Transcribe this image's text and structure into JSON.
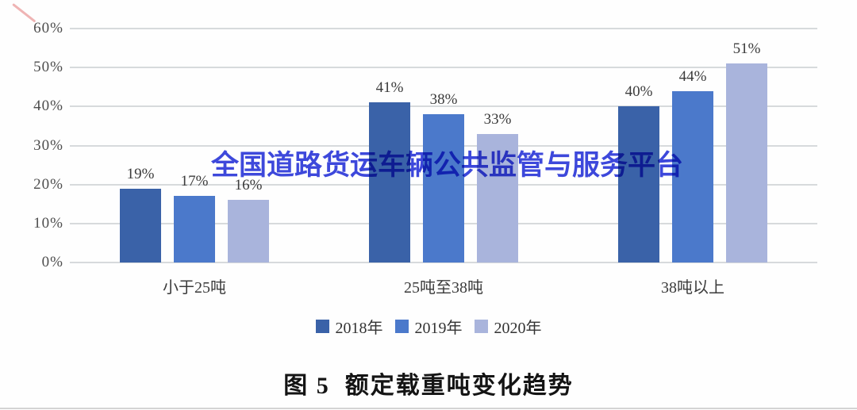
{
  "page": {
    "caption": "图 5  额定载重吨变化趋势",
    "watermark": "全国道路货运车辆公共监管与服务平台"
  },
  "chart_data": {
    "type": "bar",
    "title": "图 5 额定载重吨变化趋势",
    "categories": [
      "小于25吨",
      "25吨至38吨",
      "38吨以上"
    ],
    "series": [
      {
        "name": "2018年",
        "color": "#3a62a8",
        "values": [
          19,
          41,
          40
        ]
      },
      {
        "name": "2019年",
        "color": "#4b79cb",
        "values": [
          17,
          38,
          44
        ]
      },
      {
        "name": "2020年",
        "color": "#a9b4dc",
        "values": [
          16,
          33,
          51
        ]
      }
    ],
    "value_suffix": "%",
    "y_ticks_top_to_bottom": [
      "60%",
      "50%",
      "40%",
      "30%",
      "20%",
      "10%",
      "0%"
    ],
    "ylim": [
      0,
      60
    ],
    "grid": true,
    "legend_position": "bottom",
    "watermark": "全国道路货运车辆公共监管与服务平台",
    "colors": {
      "gridline": "#d7dadc",
      "axis_text": "#4d4d4d",
      "value_text": "#3b3b3b",
      "watermark_text": "#2c38d9"
    }
  }
}
